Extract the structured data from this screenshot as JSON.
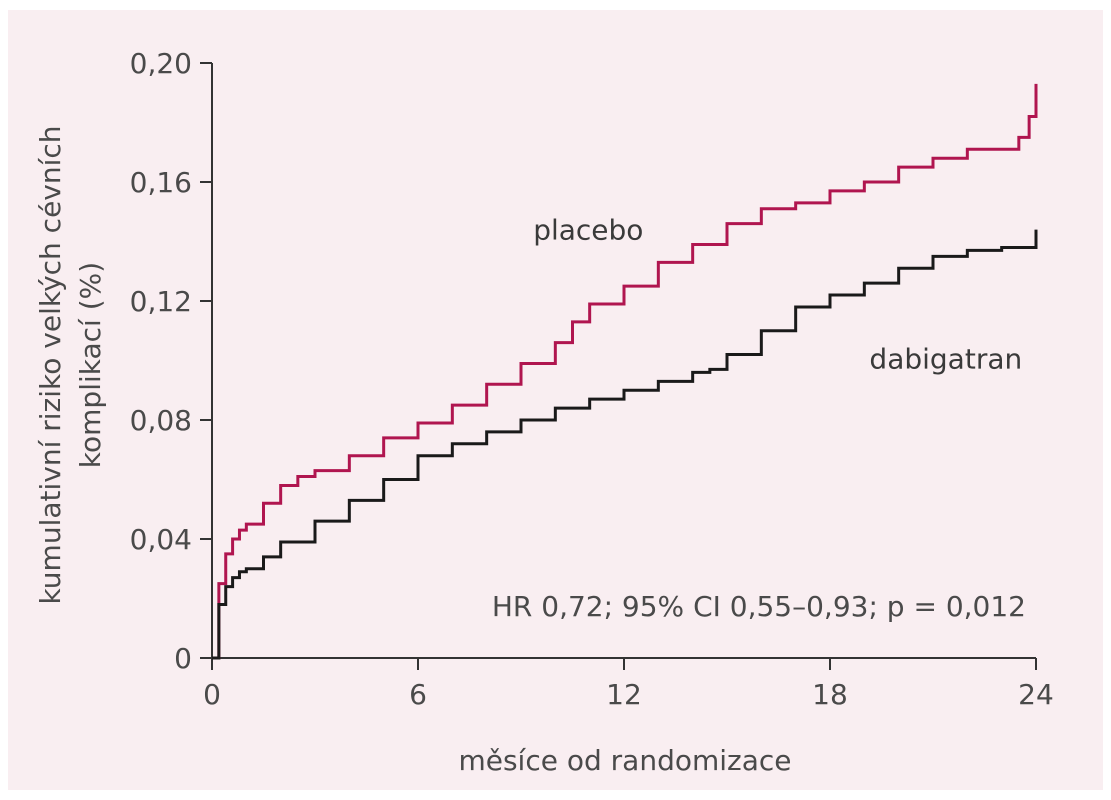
{
  "chart_data": {
    "type": "line",
    "title": "",
    "xlabel": "měsíce od randomizace",
    "ylabel": [
      "kumulativní riziko velkých cévních",
      "komplikací (%)"
    ],
    "xlim": [
      0,
      24
    ],
    "ylim": [
      0,
      0.2
    ],
    "x_ticks": [
      0,
      6,
      12,
      18,
      24
    ],
    "x_tick_labels": [
      "0",
      "6",
      "12",
      "18",
      "24"
    ],
    "y_ticks": [
      0,
      0.04,
      0.08,
      0.12,
      0.16,
      0.2
    ],
    "y_tick_labels": [
      "0",
      "0,04",
      "0,08",
      "0,12",
      "0,16",
      "0,20"
    ],
    "grid": false,
    "annotation": "HR 0,72; 95% CI 0,55–0,93; p = 0,012",
    "series": [
      {
        "name": "placebo",
        "color": "#b0154f",
        "x": [
          0,
          0.2,
          0.4,
          0.6,
          0.8,
          1,
          1.5,
          2,
          2.5,
          3,
          4,
          5,
          6,
          7,
          8,
          9,
          10,
          10.5,
          11,
          12,
          13,
          14,
          15,
          16,
          17,
          18,
          19,
          20,
          21,
          22,
          23,
          23.5,
          23.8,
          24
        ],
        "values": [
          0,
          0.025,
          0.035,
          0.04,
          0.043,
          0.045,
          0.052,
          0.058,
          0.061,
          0.063,
          0.068,
          0.074,
          0.079,
          0.085,
          0.092,
          0.099,
          0.106,
          0.113,
          0.119,
          0.125,
          0.133,
          0.139,
          0.146,
          0.151,
          0.153,
          0.157,
          0.16,
          0.165,
          0.168,
          0.171,
          0.171,
          0.175,
          0.182,
          0.193
        ]
      },
      {
        "name": "dabigatran",
        "color": "#1a1a1a",
        "x": [
          0,
          0.2,
          0.4,
          0.6,
          0.8,
          1,
          1.5,
          2,
          3,
          4,
          5,
          6,
          7,
          8,
          9,
          10,
          11,
          12,
          13,
          14,
          14.5,
          15,
          16,
          17,
          18,
          19,
          20,
          21,
          22,
          23,
          24,
          24
        ],
        "values": [
          0,
          0.018,
          0.024,
          0.027,
          0.029,
          0.03,
          0.034,
          0.039,
          0.046,
          0.053,
          0.06,
          0.068,
          0.072,
          0.076,
          0.08,
          0.084,
          0.087,
          0.09,
          0.093,
          0.096,
          0.097,
          0.102,
          0.11,
          0.118,
          0.122,
          0.126,
          0.131,
          0.135,
          0.137,
          0.138,
          0.138,
          0.144
        ]
      }
    ]
  }
}
